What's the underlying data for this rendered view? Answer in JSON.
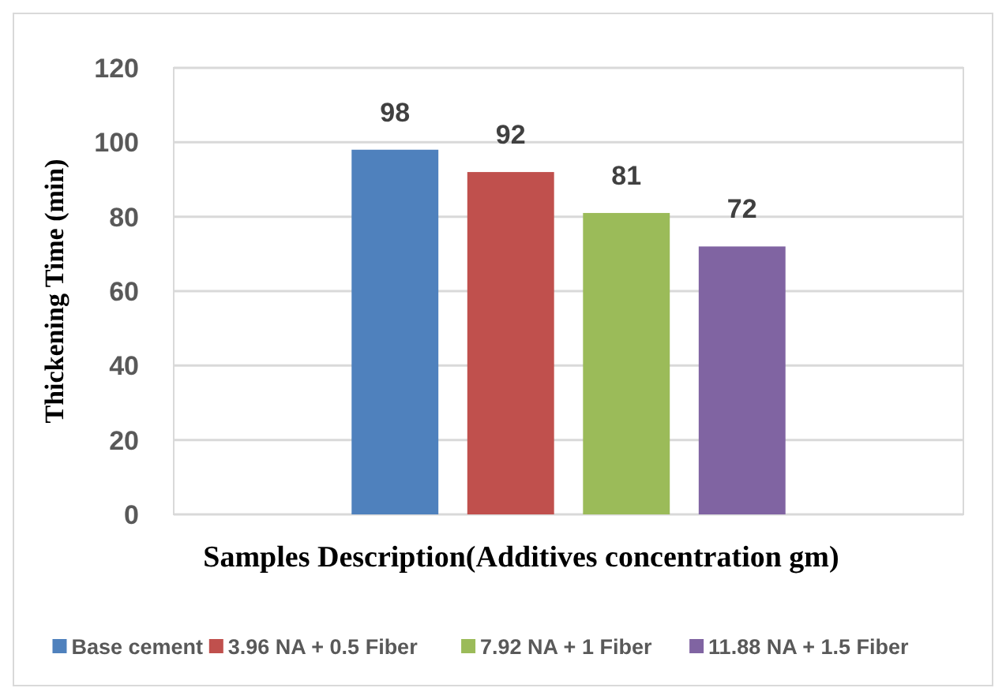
{
  "chart_data": {
    "type": "bar",
    "xlabel": "Samples Description(Additives concentration gm)",
    "ylabel": "Thickening Time (min)",
    "categories": [
      null
    ],
    "series": [
      {
        "name": "Base cement",
        "color": "#4f81bd",
        "values": [
          98
        ]
      },
      {
        "name": "3.96 NA + 0.5 Fiber",
        "color": "#c0504d",
        "values": [
          92
        ]
      },
      {
        "name": "7.92 NA + 1 Fiber",
        "color": "#9bbb59",
        "values": [
          81
        ]
      },
      {
        "name": "11.88 NA + 1.5 Fiber",
        "color": "#8064a2",
        "values": [
          72
        ]
      }
    ],
    "ylim": [
      0,
      120
    ],
    "yticks": [
      0,
      20,
      40,
      60,
      80,
      100,
      120
    ],
    "grid": "y",
    "legend": "bottom",
    "data_labels": true
  }
}
